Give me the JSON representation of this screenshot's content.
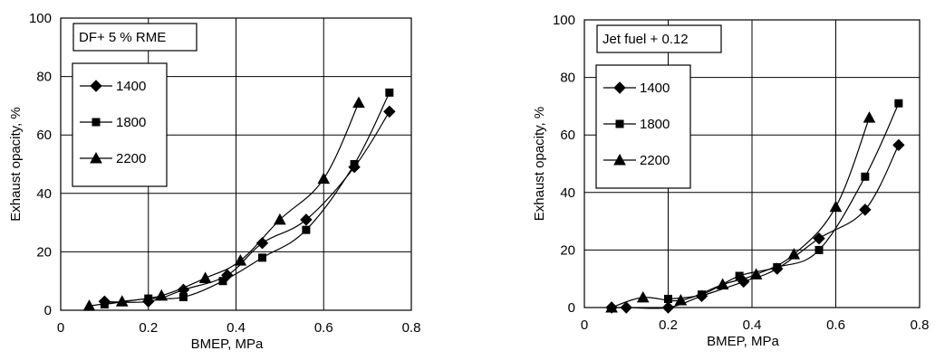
{
  "chart_data": [
    {
      "type": "line",
      "title": "DF+ 5 % RME",
      "xlabel": "BMEP, MPa",
      "ylabel": "Exhaust opacity, %",
      "xlim": [
        0,
        0.8
      ],
      "ylim": [
        0,
        100
      ],
      "xticks": [
        "0",
        "0.2",
        "0.4",
        "0.6",
        "0.8"
      ],
      "yticks": [
        "0",
        "20",
        "40",
        "60",
        "80",
        "100"
      ],
      "grid": true,
      "legend_position": "left",
      "series": [
        {
          "name": "1400",
          "marker": "diamond",
          "x": [
            0.1,
            0.2,
            0.28,
            0.38,
            0.46,
            0.56,
            0.67,
            0.75
          ],
          "y": [
            3,
            3,
            7,
            12,
            23,
            31,
            49,
            68
          ]
        },
        {
          "name": "1800",
          "marker": "square",
          "x": [
            0.1,
            0.2,
            0.28,
            0.37,
            0.46,
            0.56,
            0.67,
            0.75
          ],
          "y": [
            2,
            4,
            4.5,
            10,
            18,
            27.5,
            50,
            74.5
          ]
        },
        {
          "name": "2200",
          "marker": "triangle",
          "x": [
            0.065,
            0.14,
            0.23,
            0.33,
            0.41,
            0.5,
            0.6,
            0.68
          ],
          "y": [
            1.5,
            3,
            5,
            11,
            17,
            31,
            45,
            71
          ]
        }
      ]
    },
    {
      "type": "line",
      "title": "Jet fuel + 0.12",
      "xlabel": "BMEP, MPa",
      "ylabel": "Exhaust opacity, %",
      "xlim": [
        0,
        0.8
      ],
      "ylim": [
        0,
        100
      ],
      "xticks": [
        "0",
        "0.2",
        "0.4",
        "0.6",
        "0.8"
      ],
      "yticks": [
        "0",
        "20",
        "40",
        "60",
        "80",
        "100"
      ],
      "grid": true,
      "legend_position": "left",
      "series": [
        {
          "name": "1400",
          "marker": "diamond",
          "x": [
            0.065,
            0.1,
            0.2,
            0.28,
            0.38,
            0.46,
            0.56,
            0.67,
            0.75
          ],
          "y": [
            0,
            0,
            0,
            4,
            9,
            13.5,
            24,
            34,
            56.5
          ]
        },
        {
          "name": "1800",
          "marker": "square",
          "x": [
            0.2,
            0.28,
            0.37,
            0.46,
            0.56,
            0.67,
            0.75
          ],
          "y": [
            3,
            4.5,
            11,
            14,
            20,
            45.5,
            71
          ]
        },
        {
          "name": "2200",
          "marker": "triangle",
          "x": [
            0.065,
            0.14,
            0.23,
            0.33,
            0.41,
            0.5,
            0.6,
            0.68
          ],
          "y": [
            0,
            3.5,
            2.5,
            8,
            11.5,
            18.5,
            35,
            66
          ]
        }
      ]
    }
  ]
}
